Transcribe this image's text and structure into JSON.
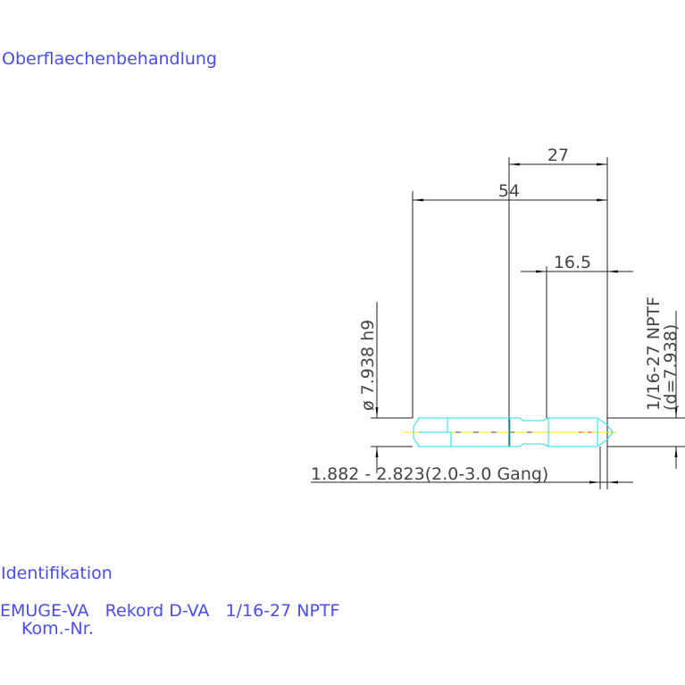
{
  "labels": {
    "surface": "Oberflaechenbehandlung",
    "identification": "Identifikation",
    "product": "EMUGE-VA   Rekord D-VA   1/16-27 NPTF",
    "comm_no": "Kom.-Nr."
  },
  "dimensions": {
    "d27": "27",
    "d54": "54",
    "d16_5": "16.5",
    "shank_dia": "ø 7.938 h9",
    "thread": "1/16-27 NPTF",
    "thread_d": "(d=7.938)",
    "chamfer": "1.882 - 2.823(2.0-3.0 Gang)"
  },
  "colors": {
    "text": "#4a4aff",
    "outline": "#19e0e6",
    "centerline": "#f0f000"
  }
}
